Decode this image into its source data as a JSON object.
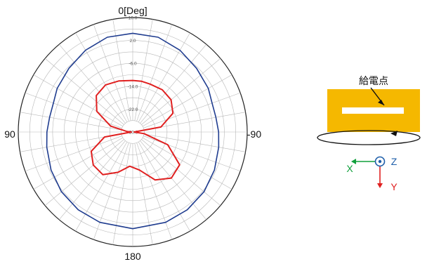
{
  "chart_data": {
    "type": "polar-line",
    "title": "0[Deg]",
    "angle_labels": {
      "top": "0[Deg]",
      "left": "90",
      "right": "-90",
      "bottom": "180"
    },
    "radial_ticks": [
      "10.0",
      "2.0",
      "-6.0",
      "-14.0",
      "-22.0",
      "-30.0"
    ],
    "radial_range": [
      -30,
      10
    ],
    "grid": true,
    "angle_direction": "counterclockwise-from-top",
    "series": [
      {
        "color": "#1f3c8f",
        "points_deg_db": [
          [
            0,
            4.5
          ],
          [
            15,
            4.3
          ],
          [
            30,
            3.0
          ],
          [
            45,
            1.5
          ],
          [
            60,
            0.5
          ],
          [
            70,
            -0.5
          ],
          [
            80,
            -0.5
          ],
          [
            90,
            0.0
          ],
          [
            100,
            0.5
          ],
          [
            115,
            1.5
          ],
          [
            130,
            2.5
          ],
          [
            145,
            3.2
          ],
          [
            160,
            3.6
          ],
          [
            180,
            3.8
          ],
          [
            200,
            3.6
          ],
          [
            215,
            3.2
          ],
          [
            230,
            2.5
          ],
          [
            245,
            1.5
          ],
          [
            260,
            0.5
          ],
          [
            270,
            0.0
          ],
          [
            280,
            -0.5
          ],
          [
            290,
            -0.5
          ],
          [
            300,
            0.5
          ],
          [
            315,
            1.5
          ],
          [
            330,
            3.0
          ],
          [
            345,
            4.3
          ],
          [
            360,
            4.5
          ]
        ]
      },
      {
        "color": "#e02020",
        "points_deg_db": [
          [
            0,
            -12.0
          ],
          [
            15,
            -11.5
          ],
          [
            30,
            -11.0
          ],
          [
            45,
            -12.0
          ],
          [
            60,
            -15.5
          ],
          [
            75,
            -22.0
          ],
          [
            85,
            -28.0
          ],
          [
            90,
            -29.5
          ],
          [
            100,
            -20.0
          ],
          [
            115,
            -14.0
          ],
          [
            130,
            -12.0
          ],
          [
            145,
            -11.8
          ],
          [
            160,
            -15.0
          ],
          [
            175,
            -18.0
          ],
          [
            190,
            -16.5
          ],
          [
            205,
            -11.5
          ],
          [
            220,
            -9.0
          ],
          [
            235,
            -10.0
          ],
          [
            250,
            -17.0
          ],
          [
            262,
            -26.0
          ],
          [
            270,
            -29.5
          ],
          [
            280,
            -20.0
          ],
          [
            295,
            -14.5
          ],
          [
            310,
            -12.5
          ],
          [
            325,
            -12.0
          ],
          [
            340,
            -12.2
          ],
          [
            350,
            -12.0
          ],
          [
            360,
            -12.0
          ]
        ]
      }
    ]
  },
  "diagram": {
    "feed_label": "給電点",
    "axes": {
      "x": "X",
      "y": "Y",
      "z": "Z"
    },
    "colors": {
      "x_axis": "#10a03c",
      "y_axis": "#e02020",
      "z_axis": "#1f5faa",
      "antenna": "#f5b800"
    }
  }
}
